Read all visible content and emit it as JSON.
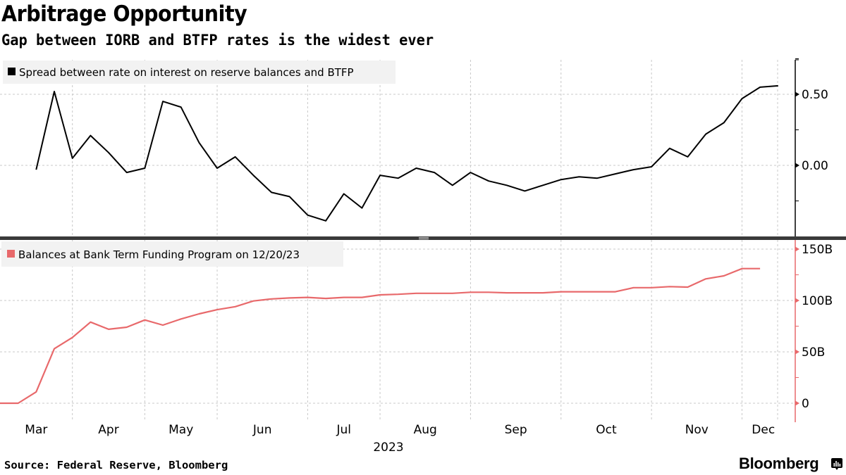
{
  "title": "Arbitrage Opportunity",
  "subtitle": "Gap between IORB and BTFP rates is the widest ever",
  "source": "Source: Federal Reserve, Bloomberg",
  "brand": "Bloomberg",
  "brand_icon": "bloomberg-terminal-icon",
  "colors": {
    "spread_line": "#000000",
    "btfp_line": "#e8696b",
    "btfp_axis": "#e8696b",
    "grid": "#c8c8c8",
    "legend_bg": "#f2f2f2",
    "separator": "#3a3a3a"
  },
  "chart_data": [
    {
      "type": "line",
      "panel": "top",
      "legend_placement": "top-left",
      "series": [
        {
          "name": "Spread between rate on interest on reserve balances and BTFP",
          "week_index": [
            2,
            3,
            4,
            5,
            6,
            7,
            8,
            9,
            10,
            11,
            12,
            13,
            14,
            15,
            16,
            17,
            18,
            19,
            20,
            21,
            22,
            23,
            24,
            25,
            26,
            27,
            28,
            29,
            30,
            31,
            32,
            33,
            34,
            35,
            36,
            37,
            38,
            39,
            40,
            41,
            42,
            43
          ],
          "values": [
            -0.03,
            0.52,
            0.05,
            0.21,
            0.09,
            -0.05,
            -0.02,
            0.45,
            0.41,
            0.16,
            -0.02,
            0.06,
            -0.07,
            -0.19,
            -0.22,
            -0.35,
            -0.39,
            -0.2,
            -0.3,
            -0.07,
            -0.09,
            -0.02,
            -0.05,
            -0.14,
            -0.05,
            -0.11,
            -0.14,
            -0.18,
            -0.14,
            -0.1,
            -0.08,
            -0.09,
            -0.06,
            -0.03,
            -0.01,
            0.12,
            0.06,
            0.22,
            0.3,
            0.47,
            0.55,
            0.56
          ]
        }
      ],
      "y_ticks": [
        "0.50",
        "0.00"
      ],
      "y_tick_values": [
        0.5,
        0.0
      ],
      "ylim": [
        -0.5,
        0.75
      ],
      "y_axis_position": "right",
      "grid": true
    },
    {
      "type": "line",
      "panel": "bottom",
      "legend_placement": "top-left",
      "series": [
        {
          "name": "Balances at Bank Term Funding Program on 12/20/23",
          "unit": "B",
          "week_index": [
            0,
            1,
            2,
            3,
            4,
            5,
            6,
            7,
            8,
            9,
            10,
            11,
            12,
            13,
            14,
            15,
            16,
            17,
            18,
            19,
            20,
            21,
            22,
            23,
            24,
            25,
            26,
            27,
            28,
            29,
            30,
            31,
            32,
            33,
            34,
            35,
            36,
            37,
            38,
            39,
            40,
            41,
            42
          ],
          "values": [
            0,
            0,
            11,
            53,
            64,
            79,
            72,
            74,
            81,
            76,
            82,
            87,
            91,
            94,
            99.5,
            101.5,
            102.5,
            103,
            102,
            103,
            103,
            105.5,
            106,
            107,
            107,
            107,
            108,
            108,
            107.5,
            107.5,
            107.5,
            108.5,
            108.5,
            108.5,
            108.5,
            112.5,
            112.5,
            113.5,
            113,
            121,
            124,
            131,
            131
          ]
        }
      ],
      "y_ticks": [
        "150B",
        "100B",
        "50B",
        "0"
      ],
      "y_tick_values": [
        150,
        100,
        50,
        0
      ],
      "ylim": [
        -18,
        155
      ],
      "y_axis_position": "right",
      "grid": true
    }
  ],
  "x_axis": {
    "months": [
      "Mar",
      "Apr",
      "May",
      "Jun",
      "Jul",
      "Aug",
      "Sep",
      "Oct",
      "Nov",
      "Dec"
    ],
    "month_start_week": [
      0,
      4,
      8,
      12,
      17,
      21,
      26,
      31,
      36,
      41
    ],
    "year_label": "2023",
    "total_weeks": 44
  }
}
